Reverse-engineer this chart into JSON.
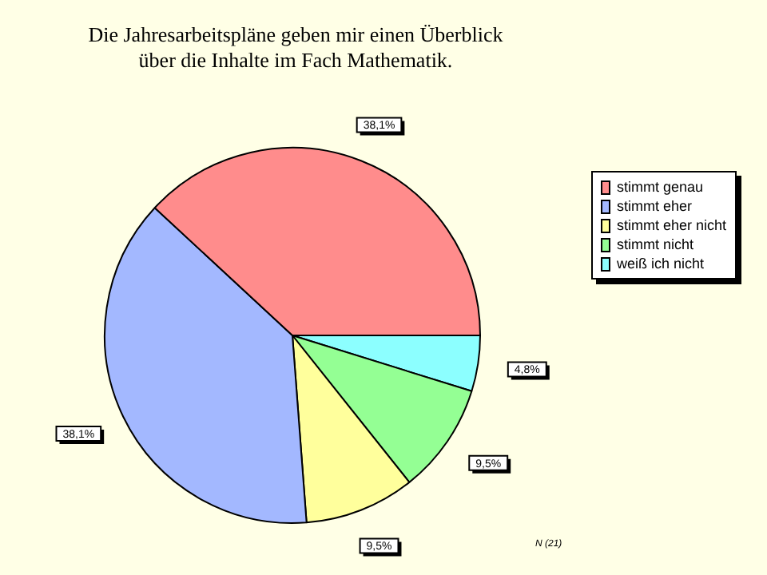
{
  "chart_data": {
    "type": "pie",
    "title": "Die Jahresarbeitspläne geben mir einen Überblick über die Inhalte im Fach Mathematik.",
    "categories": [
      "stimmt genau",
      "stimmt eher",
      "stimmt eher nicht",
      "stimmt nicht",
      "weiß ich nicht"
    ],
    "values": [
      38.1,
      38.1,
      9.5,
      9.5,
      4.8
    ],
    "colors": [
      "#ff8c8c",
      "#a3b8ff",
      "#ffff9c",
      "#94ff94",
      "#8cffff"
    ],
    "value_labels": [
      "38,1%",
      "38,1%",
      "9,5%",
      "9,5%",
      "4,8%"
    ],
    "legend": "right",
    "annotations": [
      "N (21)"
    ]
  }
}
